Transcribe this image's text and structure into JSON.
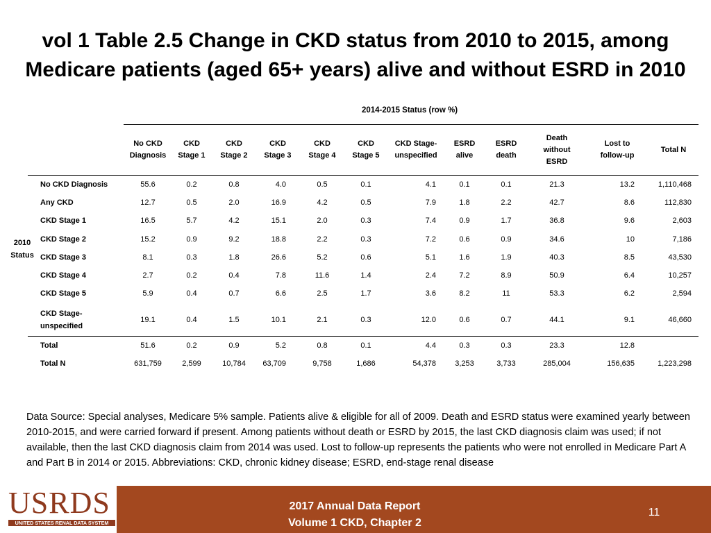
{
  "title": {
    "line1": "vol 1 Table 2.5 Change in CKD status from 2010 to 2015, among",
    "line2": "Medicare patients (aged 65+ years) alive and without ESRD in 2010"
  },
  "table": {
    "group_header": "2014-2015 Status (row %)",
    "row_group_label": {
      "line1": "2010",
      "line2": "Status"
    },
    "columns": [
      [
        "No CKD",
        "Diagnosis"
      ],
      [
        "CKD",
        "Stage 1"
      ],
      [
        "CKD",
        "Stage 2"
      ],
      [
        "CKD",
        "Stage 3"
      ],
      [
        "CKD",
        "Stage 4"
      ],
      [
        "CKD",
        "Stage 5"
      ],
      [
        "CKD Stage-",
        "unspecified"
      ],
      [
        "ESRD",
        "alive"
      ],
      [
        "ESRD",
        "death"
      ],
      [
        "Death",
        "without",
        "ESRD"
      ],
      [
        "Lost to",
        "follow-up"
      ],
      [
        "Total N"
      ]
    ],
    "rows": [
      {
        "label": [
          "No CKD Diagnosis"
        ],
        "values": [
          "55.6",
          "0.2",
          "0.8",
          "4.0",
          "0.5",
          "0.1",
          "4.1",
          "0.1",
          "0.1",
          "21.3",
          "13.2",
          "1,110,468"
        ]
      },
      {
        "label": [
          "Any CKD"
        ],
        "values": [
          "12.7",
          "0.5",
          "2.0",
          "16.9",
          "4.2",
          "0.5",
          "7.9",
          "1.8",
          "2.2",
          "42.7",
          "8.6",
          "112,830"
        ]
      },
      {
        "label": [
          "CKD Stage 1"
        ],
        "values": [
          "16.5",
          "5.7",
          "4.2",
          "15.1",
          "2.0",
          "0.3",
          "7.4",
          "0.9",
          "1.7",
          "36.8",
          "9.6",
          "2,603"
        ]
      },
      {
        "label": [
          "CKD Stage 2"
        ],
        "values": [
          "15.2",
          "0.9",
          "9.2",
          "18.8",
          "2.2",
          "0.3",
          "7.2",
          "0.6",
          "0.9",
          "34.6",
          "10",
          "7,186"
        ]
      },
      {
        "label": [
          "CKD Stage 3"
        ],
        "values": [
          "8.1",
          "0.3",
          "1.8",
          "26.6",
          "5.2",
          "0.6",
          "5.1",
          "1.6",
          "1.9",
          "40.3",
          "8.5",
          "43,530"
        ]
      },
      {
        "label": [
          "CKD Stage 4"
        ],
        "values": [
          "2.7",
          "0.2",
          "0.4",
          "7.8",
          "11.6",
          "1.4",
          "2.4",
          "7.2",
          "8.9",
          "50.9",
          "6.4",
          "10,257"
        ]
      },
      {
        "label": [
          "CKD Stage 5"
        ],
        "values": [
          "5.9",
          "0.4",
          "0.7",
          "6.6",
          "2.5",
          "1.7",
          "3.6",
          "8.2",
          "11",
          "53.3",
          "6.2",
          "2,594"
        ]
      },
      {
        "label": [
          "CKD Stage-",
          "unspecified"
        ],
        "values": [
          "19.1",
          "0.4",
          "1.5",
          "10.1",
          "2.1",
          "0.3",
          "12.0",
          "0.6",
          "0.7",
          "44.1",
          "9.1",
          "46,660"
        ]
      },
      {
        "label": [
          "Total"
        ],
        "values": [
          "51.6",
          "0.2",
          "0.9",
          "5.2",
          "0.8",
          "0.1",
          "4.4",
          "0.3",
          "0.3",
          "23.3",
          "12.8",
          ""
        ]
      },
      {
        "label": [
          "Total N"
        ],
        "values": [
          "631,759",
          "2,599",
          "10,784",
          "63,709",
          "9,758",
          "1,686",
          "54,378",
          "3,253",
          "3,733",
          "285,004",
          "156,635",
          "1,223,298"
        ]
      }
    ]
  },
  "note": "Data Source: Special analyses, Medicare 5% sample. Patients alive & eligible for all of 2009. Death and ESRD status were examined yearly between 2010-2015, and were carried forward if present. Among patients without death or ESRD by 2015, the last CKD diagnosis claim was used; if not available, then the last CKD diagnosis claim from 2014 was used. Lost to follow-up represents the patients who were not enrolled in Medicare Part A and Part B in 2014 or 2015. Abbreviations: CKD, chronic kidney disease; ESRD, end-stage renal disease",
  "footer": {
    "logo_text": "USRDS",
    "logo_subtext": "UNITED STATES RENAL DATA SYSTEM",
    "report_line1": "2017 Annual Data Report",
    "report_line2": "Volume 1 CKD, Chapter 2",
    "page_number": "11"
  },
  "colors": {
    "footer_bg": "#a3481f",
    "logo": "#8f3a1e"
  }
}
